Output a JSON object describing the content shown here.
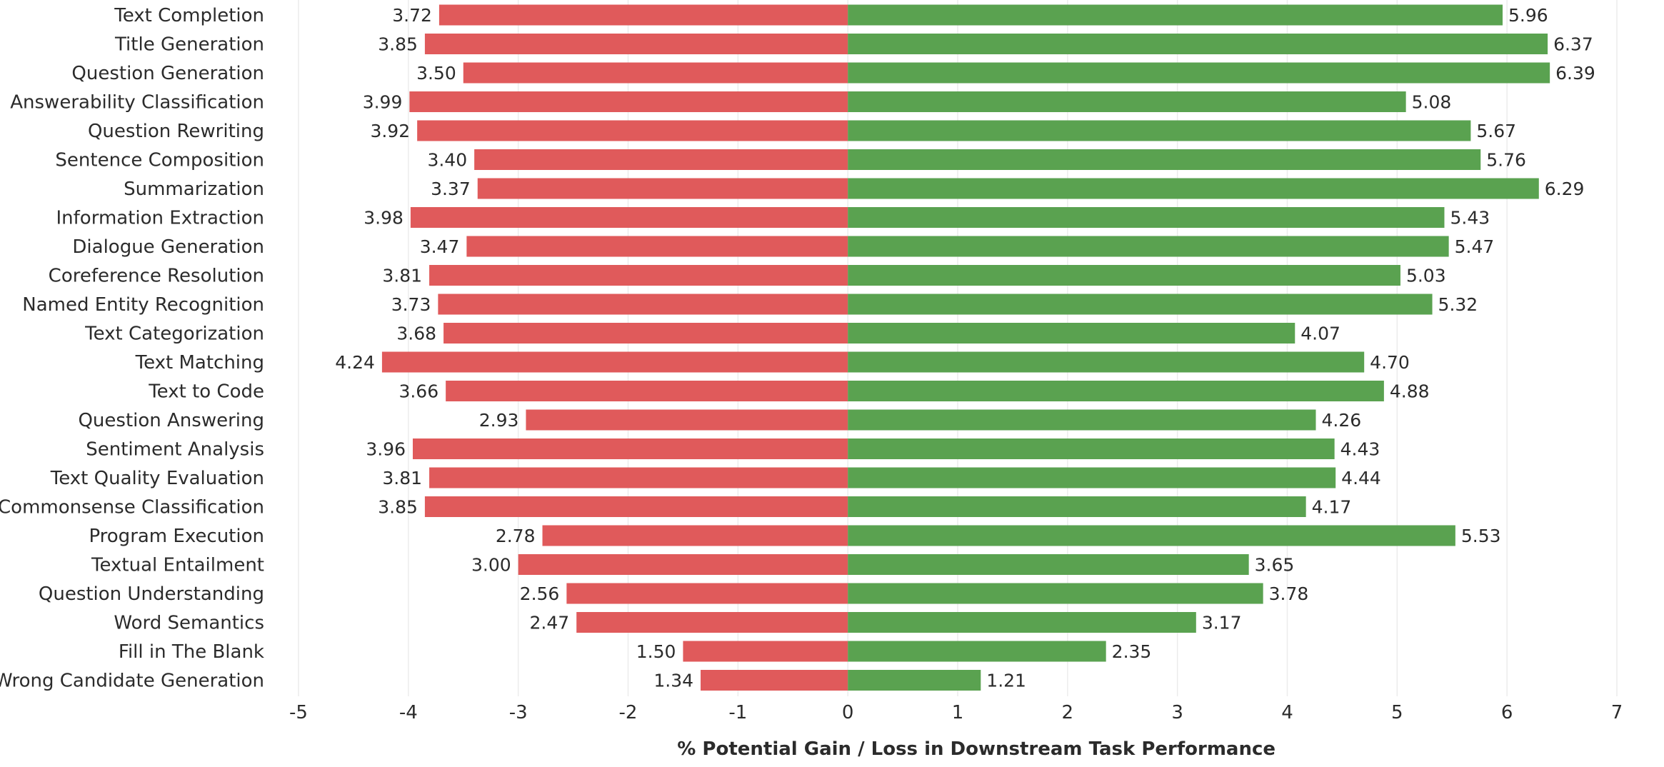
{
  "chart_data": {
    "type": "bar",
    "orientation": "horizontal-diverging",
    "xlabel": "% Potential Gain / Loss in Downstream Task Performance",
    "xlim": [
      -5,
      7
    ],
    "xticks": [
      "-5",
      "-4",
      "-3",
      "-2",
      "-1",
      "0",
      "1",
      "2",
      "3",
      "4",
      "5",
      "6",
      "7"
    ],
    "grid": true,
    "colors": {
      "loss": "#e05a5b",
      "gain": "#5aa250"
    },
    "categories": [
      "Text Completion",
      "Title Generation",
      "Question Generation",
      "Answerability Classification",
      "Question Rewriting",
      "Sentence Composition",
      "Summarization",
      "Information Extraction",
      "Dialogue Generation",
      "Coreference Resolution",
      "Named Entity Recognition",
      "Text Categorization",
      "Text Matching",
      "Text to Code",
      "Question Answering",
      "Sentiment Analysis",
      "Text Quality Evaluation",
      "Commonsense Classification",
      "Program Execution",
      "Textual Entailment",
      "Question Understanding",
      "Word Semantics",
      "Fill in The Blank",
      "Wrong Candidate Generation"
    ],
    "series": [
      {
        "name": "Loss",
        "values": [
          3.72,
          3.85,
          3.5,
          3.99,
          3.92,
          3.4,
          3.37,
          3.98,
          3.47,
          3.81,
          3.73,
          3.68,
          4.24,
          3.66,
          2.93,
          3.96,
          3.81,
          3.85,
          2.78,
          3.0,
          2.56,
          2.47,
          1.5,
          1.34
        ],
        "labels": [
          "3.72",
          "3.85",
          "3.50",
          "3.99",
          "3.92",
          "3.40",
          "3.37",
          "3.98",
          "3.47",
          "3.81",
          "3.73",
          "3.68",
          "4.24",
          "3.66",
          "2.93",
          "3.96",
          "3.81",
          "3.85",
          "2.78",
          "3.00",
          "2.56",
          "2.47",
          "1.50",
          "1.34"
        ]
      },
      {
        "name": "Gain",
        "values": [
          5.96,
          6.37,
          6.39,
          5.08,
          5.67,
          5.76,
          6.29,
          5.43,
          5.47,
          5.03,
          5.32,
          4.07,
          4.7,
          4.88,
          4.26,
          4.43,
          4.44,
          4.17,
          5.53,
          3.65,
          3.78,
          3.17,
          2.35,
          1.21
        ],
        "labels": [
          "5.96",
          "6.37",
          "6.39",
          "5.08",
          "5.67",
          "5.76",
          "6.29",
          "5.43",
          "5.47",
          "5.03",
          "5.32",
          "4.07",
          "4.70",
          "4.88",
          "4.26",
          "4.43",
          "4.44",
          "4.17",
          "5.53",
          "3.65",
          "3.78",
          "3.17",
          "2.35",
          "1.21"
        ]
      }
    ]
  }
}
